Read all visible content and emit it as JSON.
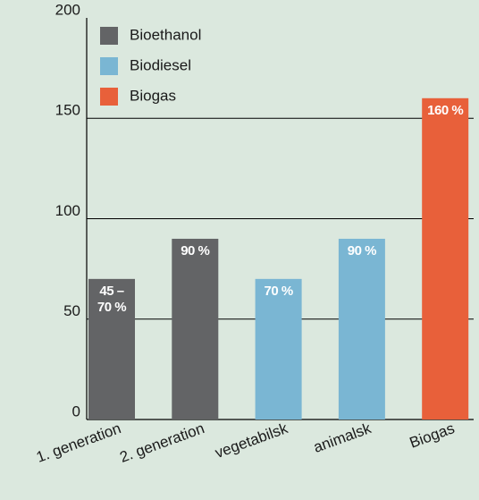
{
  "chart_data": {
    "type": "bar",
    "categories": [
      "1. generation",
      "2. generation",
      "vegetabilsk",
      "animalsk",
      "Biogas"
    ],
    "series": [
      {
        "name": "Bioethanol",
        "color": "#636466",
        "values": [
          70,
          90,
          null,
          null,
          null
        ],
        "value_labels": [
          "45 – 70 %",
          "90 %",
          null,
          null,
          null
        ]
      },
      {
        "name": "Biodiesel",
        "color": "#7ab6d3",
        "values": [
          null,
          null,
          70,
          90,
          null
        ],
        "value_labels": [
          null,
          null,
          "70 %",
          "90 %",
          null
        ]
      },
      {
        "name": "Biogas",
        "color": "#e8603a",
        "values": [
          null,
          null,
          null,
          null,
          160
        ],
        "value_labels": [
          null,
          null,
          null,
          null,
          "160 %"
        ]
      }
    ],
    "ylim": [
      0,
      200
    ],
    "yticks": [
      0,
      50,
      100,
      150,
      200
    ],
    "grid": true,
    "legend": "top-left"
  }
}
